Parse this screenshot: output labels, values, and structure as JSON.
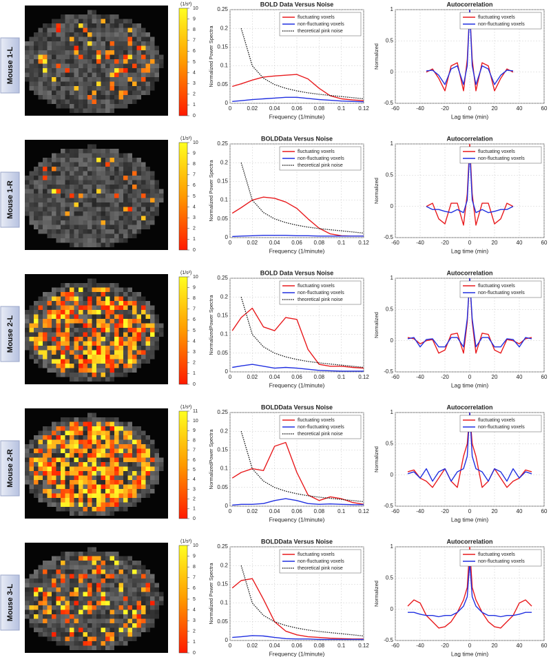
{
  "panels": [
    {
      "label": "Mouse 1-L",
      "colorbar": {
        "unit": "(1/s²)",
        "ticks": [
          0,
          1,
          2,
          3,
          4,
          5,
          6,
          7,
          8,
          9,
          10
        ]
      }
    },
    {
      "label": "Mouse 1-R",
      "colorbar": {
        "unit": "(1/s²)",
        "ticks": [
          0,
          1,
          2,
          3,
          4,
          5,
          6,
          7,
          8,
          9,
          10
        ]
      }
    },
    {
      "label": "Mouse 2-L",
      "colorbar": {
        "unit": "(1/s²)",
        "ticks": [
          0,
          1,
          2,
          3,
          4,
          5,
          6,
          7,
          8,
          9,
          10
        ]
      }
    },
    {
      "label": "Mouse 2-R",
      "colorbar": {
        "unit": "(1/s²)",
        "ticks": [
          0,
          1,
          2,
          3,
          4,
          5,
          6,
          7,
          8,
          9,
          10,
          11
        ]
      }
    },
    {
      "label": "Mouse 3-L",
      "colorbar": {
        "unit": "(1/s²)",
        "ticks": [
          0,
          1,
          2,
          3,
          4,
          5,
          6,
          7,
          8,
          9,
          10
        ]
      }
    }
  ],
  "chart_data": [
    {
      "type": "line",
      "title": "BOLD Data Versus Noise",
      "x_label": "Frequency (1/minute)",
      "y_label": "Normalized Power Spectra",
      "grid": true,
      "xlim": [
        0,
        0.12
      ],
      "xticks": [
        0,
        0.02,
        0.04,
        0.06,
        0.08,
        0.1,
        0.12
      ],
      "ylim": [
        0,
        0.25
      ],
      "yticks": [
        0,
        0.05,
        0.1,
        0.15,
        0.2,
        0.25
      ],
      "x": [
        0.002,
        0.01,
        0.02,
        0.03,
        0.04,
        0.05,
        0.06,
        0.07,
        0.08,
        0.09,
        0.1,
        0.11,
        0.12
      ],
      "series": [
        {
          "name": "fluctuating voxels",
          "color": "#e8191c",
          "style": "solid",
          "values": [
            0.045,
            0.052,
            0.062,
            0.07,
            0.073,
            0.075,
            0.077,
            0.065,
            0.04,
            0.02,
            0.012,
            0.009,
            0.007
          ]
        },
        {
          "name": "non-fluctuating voxels",
          "color": "#1f2ee0",
          "style": "solid",
          "values": [
            0.005,
            0.007,
            0.01,
            0.012,
            0.014,
            0.016,
            0.016,
            0.013,
            0.01,
            0.008,
            0.006,
            0.005,
            0.004
          ]
        },
        {
          "name": "theoretical pink noise",
          "color": "#111111",
          "style": "dotted",
          "values": [
            null,
            0.2,
            0.1,
            0.067,
            0.05,
            0.04,
            0.033,
            0.028,
            0.024,
            0.021,
            0.018,
            0.015,
            0.012
          ]
        }
      ]
    },
    {
      "type": "line",
      "title": "Autocorrelation",
      "x_label": "Lag time (min)",
      "y_label": "Normalized",
      "grid": true,
      "xlim": [
        -60,
        60
      ],
      "xticks": [
        -60,
        -40,
        -20,
        0,
        20,
        40,
        60
      ],
      "ylim": [
        -0.5,
        1
      ],
      "yticks": [
        -0.5,
        0,
        0.5,
        1
      ],
      "x": [
        -35,
        -30,
        -25,
        -20,
        -15,
        -10,
        -5,
        -2,
        0,
        2,
        5,
        10,
        15,
        20,
        25,
        30,
        35
      ],
      "series": [
        {
          "name": "fluctuating voxels",
          "color": "#e8191c",
          "style": "solid",
          "values": [
            0,
            0.05,
            -0.1,
            -0.3,
            0.1,
            0.15,
            -0.3,
            0.2,
            1,
            0.2,
            -0.3,
            0.15,
            0.1,
            -0.3,
            -0.1,
            0.05,
            0
          ]
        },
        {
          "name": "non-fluctuating voxels",
          "color": "#1f2ee0",
          "style": "solid",
          "values": [
            0.02,
            0.03,
            -0.05,
            -0.2,
            0.05,
            0.1,
            -0.2,
            0.1,
            1,
            0.1,
            -0.2,
            0.1,
            0.05,
            -0.2,
            -0.05,
            0.03,
            0.02
          ]
        }
      ]
    },
    {
      "type": "line",
      "title": "BOLDData Versus Noise",
      "x_label": "Frequency (1/minute)",
      "y_label": "Normalized Power Spectra",
      "grid": true,
      "xlim": [
        0,
        0.12
      ],
      "xticks": [
        0,
        0.02,
        0.04,
        0.06,
        0.08,
        0.1,
        0.12
      ],
      "ylim": [
        0,
        0.25
      ],
      "yticks": [
        0,
        0.05,
        0.1,
        0.15,
        0.2,
        0.25
      ],
      "x": [
        0.002,
        0.01,
        0.02,
        0.03,
        0.04,
        0.05,
        0.06,
        0.07,
        0.08,
        0.09,
        0.1,
        0.11,
        0.12
      ],
      "series": [
        {
          "name": "fluctuating voxels",
          "color": "#e8191c",
          "style": "solid",
          "values": [
            0.065,
            0.08,
            0.1,
            0.108,
            0.105,
            0.095,
            0.078,
            0.05,
            0.025,
            0.01,
            0.005,
            0.004,
            0.004
          ]
        },
        {
          "name": "non-fluctuating voxels",
          "color": "#1f2ee0",
          "style": "solid",
          "values": [
            0.003,
            0.004,
            0.005,
            0.006,
            0.006,
            0.006,
            0.005,
            0.005,
            0.004,
            0.004,
            0.004,
            0.004,
            0.004
          ]
        },
        {
          "name": "theoretical pink noise",
          "color": "#111111",
          "style": "dotted",
          "values": [
            null,
            0.2,
            0.1,
            0.067,
            0.05,
            0.04,
            0.033,
            0.028,
            0.024,
            0.021,
            0.018,
            0.015,
            0.012
          ]
        }
      ]
    },
    {
      "type": "line",
      "title": "Autocorrelation",
      "x_label": "Lag time (min)",
      "y_label": "Normalized",
      "grid": true,
      "xlim": [
        -60,
        60
      ],
      "xticks": [
        -60,
        -40,
        -20,
        0,
        20,
        40,
        60
      ],
      "ylim": [
        -0.5,
        1
      ],
      "yticks": [
        -0.5,
        0,
        0.5,
        1
      ],
      "x": [
        -35,
        -30,
        -25,
        -20,
        -15,
        -10,
        -5,
        -2,
        0,
        2,
        5,
        10,
        15,
        20,
        25,
        30,
        35
      ],
      "series": [
        {
          "name": "fluctuating voxels",
          "color": "#e8191c",
          "style": "solid",
          "values": [
            0,
            0.05,
            -0.2,
            -0.28,
            0.05,
            0.05,
            -0.3,
            0.2,
            1,
            0.2,
            -0.3,
            0.05,
            0.05,
            -0.28,
            -0.2,
            0.05,
            0
          ]
        },
        {
          "name": "non-fluctuating voxels",
          "color": "#1f2ee0",
          "style": "solid",
          "values": [
            0,
            -0.05,
            -0.05,
            -0.08,
            -0.1,
            -0.05,
            -0.1,
            0.1,
            0.9,
            0.1,
            -0.1,
            -0.05,
            -0.1,
            -0.08,
            -0.05,
            -0.05,
            0
          ]
        }
      ]
    },
    {
      "type": "line",
      "title": "BOLD Data Versus Noise",
      "x_label": "Frequency (1/minute)",
      "y_label": "NormalizedPower Spectra",
      "grid": true,
      "xlim": [
        0,
        0.12
      ],
      "xticks": [
        0,
        0.02,
        0.04,
        0.06,
        0.08,
        0.1,
        0.12
      ],
      "ylim": [
        0,
        0.25
      ],
      "yticks": [
        0,
        0.05,
        0.1,
        0.15,
        0.2,
        0.25
      ],
      "x": [
        0.002,
        0.01,
        0.02,
        0.03,
        0.04,
        0.05,
        0.06,
        0.07,
        0.08,
        0.09,
        0.1,
        0.11,
        0.12
      ],
      "series": [
        {
          "name": "fluctuating voxels",
          "color": "#e8191c",
          "style": "solid",
          "values": [
            0.11,
            0.145,
            0.17,
            0.12,
            0.11,
            0.145,
            0.14,
            0.06,
            0.02,
            0.015,
            0.015,
            0.012,
            0.01
          ]
        },
        {
          "name": "non-fluctuating voxels",
          "color": "#1f2ee0",
          "style": "solid",
          "values": [
            0.012,
            0.016,
            0.02,
            0.015,
            0.01,
            0.012,
            0.01,
            0.007,
            0.004,
            0.003,
            0.002,
            0.002,
            0.002
          ]
        },
        {
          "name": "theoretical pink noise",
          "color": "#111111",
          "style": "dotted",
          "values": [
            null,
            0.2,
            0.1,
            0.067,
            0.05,
            0.04,
            0.033,
            0.028,
            0.024,
            0.021,
            0.018,
            0.015,
            0.012
          ]
        }
      ]
    },
    {
      "type": "line",
      "title": "Autocorrelation",
      "x_label": "Lag time (min)",
      "y_label": "Normalized",
      "grid": true,
      "xlim": [
        -60,
        60
      ],
      "xticks": [
        -60,
        -40,
        -20,
        0,
        20,
        40,
        60
      ],
      "ylim": [
        -0.5,
        1
      ],
      "yticks": [
        -0.5,
        0,
        0.5,
        1
      ],
      "x": [
        -50,
        -45,
        -40,
        -35,
        -30,
        -25,
        -20,
        -15,
        -10,
        -5,
        -2,
        0,
        2,
        5,
        10,
        15,
        20,
        25,
        30,
        35,
        40,
        45,
        50
      ],
      "series": [
        {
          "name": "fluctuating voxels",
          "color": "#e8191c",
          "style": "solid",
          "values": [
            0.05,
            0.03,
            -0.05,
            0,
            0.02,
            -0.2,
            -0.15,
            0.1,
            0.12,
            -0.2,
            0.3,
            1,
            0.3,
            -0.2,
            0.12,
            0.1,
            -0.15,
            -0.2,
            0.02,
            0,
            -0.05,
            0.03,
            0.05
          ]
        },
        {
          "name": "non-fluctuating voxels",
          "color": "#1f2ee0",
          "style": "solid",
          "values": [
            0.03,
            0.05,
            -0.1,
            0.02,
            0.03,
            -0.1,
            -0.1,
            0.05,
            0.05,
            -0.1,
            0.35,
            1,
            0.35,
            -0.1,
            0.05,
            0.05,
            -0.1,
            -0.1,
            0.03,
            0.02,
            -0.1,
            0.05,
            0.03
          ]
        }
      ]
    },
    {
      "type": "line",
      "title": "BOLDData Versus Noise",
      "x_label": "Frequency (1/minute)",
      "y_label": "NormalizedPower Spectra",
      "grid": true,
      "xlim": [
        0,
        0.12
      ],
      "xticks": [
        0,
        0.02,
        0.04,
        0.06,
        0.08,
        0.1,
        0.12
      ],
      "ylim": [
        0,
        0.25
      ],
      "yticks": [
        0,
        0.05,
        0.1,
        0.15,
        0.2,
        0.25
      ],
      "x": [
        0.002,
        0.01,
        0.02,
        0.03,
        0.04,
        0.05,
        0.06,
        0.07,
        0.08,
        0.09,
        0.1,
        0.11,
        0.12
      ],
      "series": [
        {
          "name": "fluctuating voxels",
          "color": "#e8191c",
          "style": "solid",
          "values": [
            0.075,
            0.09,
            0.1,
            0.095,
            0.16,
            0.17,
            0.09,
            0.03,
            0.015,
            0.025,
            0.02,
            0.01,
            0.005
          ]
        },
        {
          "name": "non-fluctuating voxels",
          "color": "#1f2ee0",
          "style": "solid",
          "values": [
            0.003,
            0.005,
            0.005,
            0.007,
            0.015,
            0.02,
            0.015,
            0.007,
            0.005,
            0.006,
            0.005,
            0.004,
            0.004
          ]
        },
        {
          "name": "theoretical pink noise",
          "color": "#111111",
          "style": "dotted",
          "values": [
            null,
            0.2,
            0.1,
            0.067,
            0.05,
            0.04,
            0.033,
            0.028,
            0.024,
            0.021,
            0.018,
            0.015,
            0.012
          ]
        }
      ]
    },
    {
      "type": "line",
      "title": "Autocorrelation",
      "x_label": "Lag time (min)",
      "y_label": "Normalized",
      "grid": true,
      "xlim": [
        -60,
        60
      ],
      "xticks": [
        -60,
        -40,
        -20,
        0,
        20,
        40,
        60
      ],
      "ylim": [
        -0.5,
        1
      ],
      "yticks": [
        -0.5,
        0,
        0.5,
        1
      ],
      "x": [
        -50,
        -45,
        -40,
        -35,
        -30,
        -25,
        -20,
        -15,
        -10,
        -5,
        -2,
        0,
        2,
        5,
        10,
        15,
        20,
        25,
        30,
        35,
        40,
        45,
        50
      ],
      "series": [
        {
          "name": "fluctuating voxels",
          "color": "#e8191c",
          "style": "solid",
          "values": [
            0.05,
            0.08,
            -0.05,
            -0.1,
            -0.2,
            -0.05,
            0.1,
            -0.1,
            -0.2,
            0.3,
            0.5,
            1,
            0.5,
            0.3,
            -0.2,
            -0.1,
            0.1,
            -0.05,
            -0.2,
            -0.1,
            -0.05,
            0.08,
            0.05
          ]
        },
        {
          "name": "non-fluctuating voxels",
          "color": "#1f2ee0",
          "style": "solid",
          "values": [
            0.02,
            0.05,
            -0.05,
            0.1,
            -0.1,
            0.05,
            0.1,
            -0.1,
            0.05,
            0.1,
            0.3,
            1,
            0.3,
            0.1,
            0.05,
            -0.1,
            0.1,
            0.05,
            -0.1,
            0.1,
            -0.05,
            0.05,
            0.02
          ]
        }
      ]
    },
    {
      "type": "line",
      "title": "BOLDData Versus Noise",
      "x_label": "Frequency (1/minute)",
      "y_label": "Normalized Power Spectra",
      "grid": true,
      "xlim": [
        0,
        0.12
      ],
      "xticks": [
        0,
        0.02,
        0.04,
        0.06,
        0.08,
        0.1,
        0.12
      ],
      "ylim": [
        0,
        0.25
      ],
      "yticks": [
        0,
        0.05,
        0.1,
        0.15,
        0.2,
        0.25
      ],
      "x": [
        0.002,
        0.01,
        0.02,
        0.03,
        0.04,
        0.05,
        0.06,
        0.07,
        0.08,
        0.09,
        0.1,
        0.11,
        0.12
      ],
      "series": [
        {
          "name": "fluctuating voxels",
          "color": "#e8191c",
          "style": "solid",
          "values": [
            0.14,
            0.16,
            0.165,
            0.11,
            0.05,
            0.025,
            0.015,
            0.01,
            0.008,
            0.006,
            0.005,
            0.004,
            0.004
          ]
        },
        {
          "name": "non-fluctuating voxels",
          "color": "#1f2ee0",
          "style": "solid",
          "values": [
            0.008,
            0.01,
            0.013,
            0.012,
            0.008,
            0.005,
            0.004,
            0.004,
            0.003,
            0.003,
            0.003,
            0.003,
            0.003
          ]
        },
        {
          "name": "theoretical pink noise",
          "color": "#111111",
          "style": "dotted",
          "values": [
            null,
            0.2,
            0.1,
            0.067,
            0.05,
            0.04,
            0.033,
            0.028,
            0.024,
            0.021,
            0.018,
            0.015,
            0.012
          ]
        }
      ]
    },
    {
      "type": "line",
      "title": "Autocorrelation",
      "x_label": "Lag time (min)",
      "y_label": "Normalized",
      "grid": true,
      "xlim": [
        -60,
        60
      ],
      "xticks": [
        -60,
        -40,
        -20,
        0,
        20,
        40,
        60
      ],
      "ylim": [
        -0.5,
        1
      ],
      "yticks": [
        -0.5,
        0,
        0.5,
        1
      ],
      "x": [
        -50,
        -45,
        -40,
        -35,
        -30,
        -25,
        -20,
        -15,
        -10,
        -5,
        -2,
        0,
        2,
        5,
        10,
        15,
        20,
        25,
        30,
        35,
        40,
        45,
        50
      ],
      "series": [
        {
          "name": "fluctuating voxels",
          "color": "#e8191c",
          "style": "solid",
          "values": [
            0.05,
            0.15,
            0.1,
            -0.1,
            -0.2,
            -0.3,
            -0.28,
            -0.2,
            -0.05,
            0.15,
            0.35,
            1,
            0.35,
            0.15,
            -0.05,
            -0.2,
            -0.28,
            -0.3,
            -0.2,
            -0.1,
            0.1,
            0.15,
            0.05
          ]
        },
        {
          "name": "non-fluctuating voxels",
          "color": "#1f2ee0",
          "style": "solid",
          "values": [
            -0.05,
            -0.05,
            -0.08,
            -0.1,
            -0.1,
            -0.12,
            -0.1,
            -0.1,
            -0.05,
            0.05,
            0.2,
            0.75,
            0.2,
            0.05,
            -0.05,
            -0.1,
            -0.1,
            -0.12,
            -0.1,
            -0.1,
            -0.08,
            -0.05,
            -0.05
          ]
        }
      ]
    }
  ]
}
